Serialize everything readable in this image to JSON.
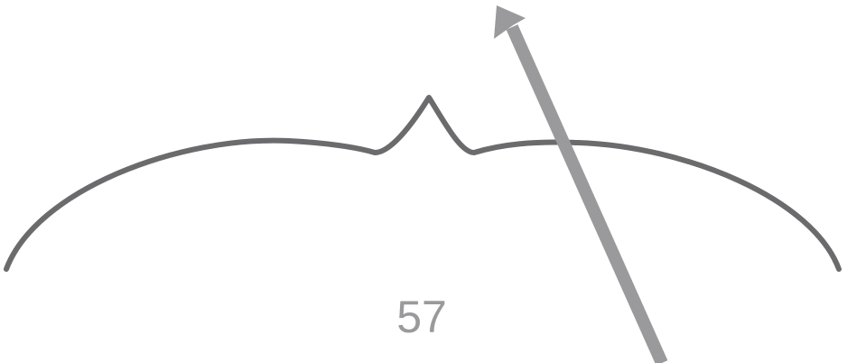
{
  "label": "57",
  "colors": {
    "brace": "#6b6b6d",
    "arrow": "#9a9a9c",
    "label": "#9a9a9c",
    "background": "#ffffff"
  },
  "icons": {
    "brace": "curly-brace-icon",
    "pointer": "arrow-pointer-icon"
  }
}
